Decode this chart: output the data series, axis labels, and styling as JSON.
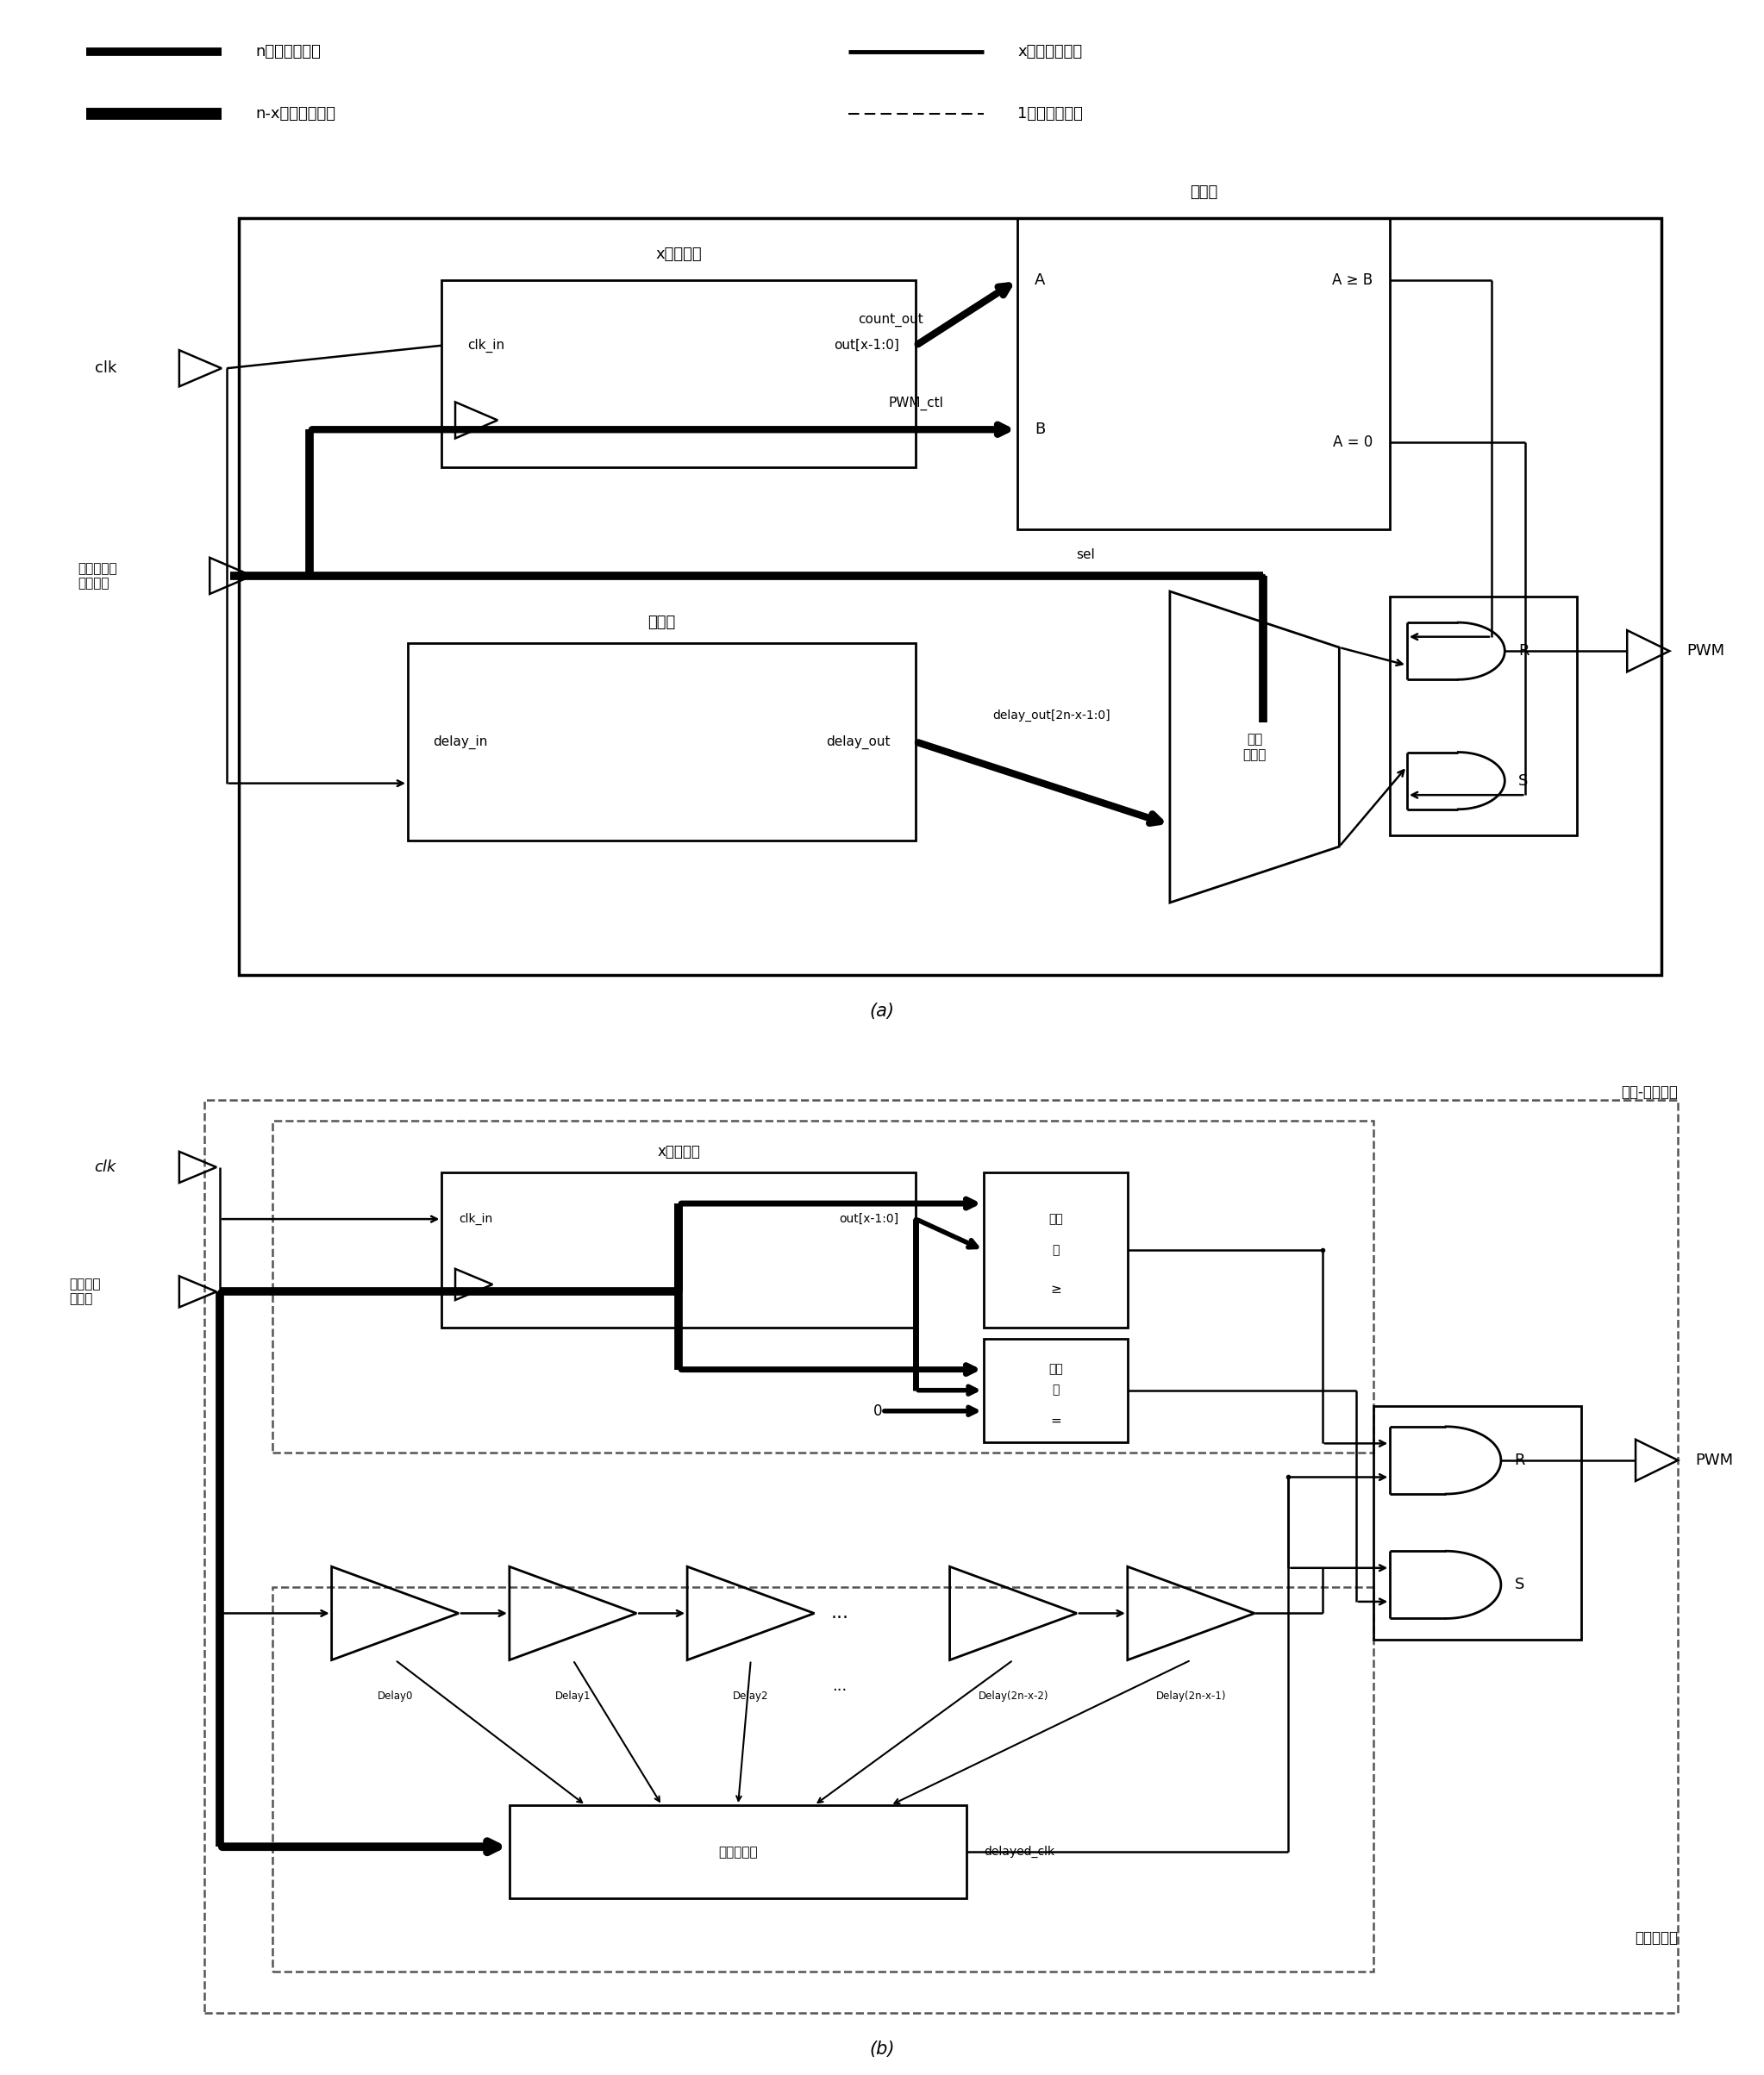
{
  "bg_color": "#ffffff",
  "legend": {
    "line1_left_label": "n位数据信号线",
    "line1_right_label": "x位数据信号线",
    "line2_left_label": "n-x位数据信号线",
    "line2_right_label": "1位数据信号线"
  },
  "diagram_a": {
    "counter_label": "x位计数器",
    "counter_in": "clk_in",
    "counter_out": "out[x-1:0]",
    "comparator_label": "比较器",
    "comp_a": "A",
    "comp_b": "B",
    "comp_geq": "A ≥ B",
    "comp_eq": "A = 0",
    "delay_label": "延时线",
    "delay_in": "delay_in",
    "delay_out": "delay_out",
    "delay_out2": "delay_out[2n-x-1:0]",
    "mux_label": "多路选择器",
    "count_out": "count_out",
    "pwm_ctl": "PWM_ctl",
    "sel": "sel",
    "clk": "clk",
    "duty": "占空比大小\n控制信号",
    "pwm": "PWM",
    "sr_r": "R",
    "sr_s": "S",
    "caption": "(a)"
  },
  "diagram_b": {
    "counter_label": "x位计数器",
    "clk": "clk",
    "duty": "占空比控\n制信号",
    "comp1_label": "比较\n器\n≥",
    "comp2_label": "比较\n器\n=",
    "delay_labels": [
      "Delay0",
      "Delay1",
      "Delay2",
      "Delay(2n-x-2)",
      "Delay(2n-x-1)"
    ],
    "mux_label": "多路选择器",
    "delayed_clk": "delayed_clk",
    "pwm": "PWM",
    "sr_r": "R",
    "sr_s": "S",
    "count_comp_label": "计数-比较电路",
    "delay_line_label": "延迟线电路",
    "caption": "(b)"
  }
}
